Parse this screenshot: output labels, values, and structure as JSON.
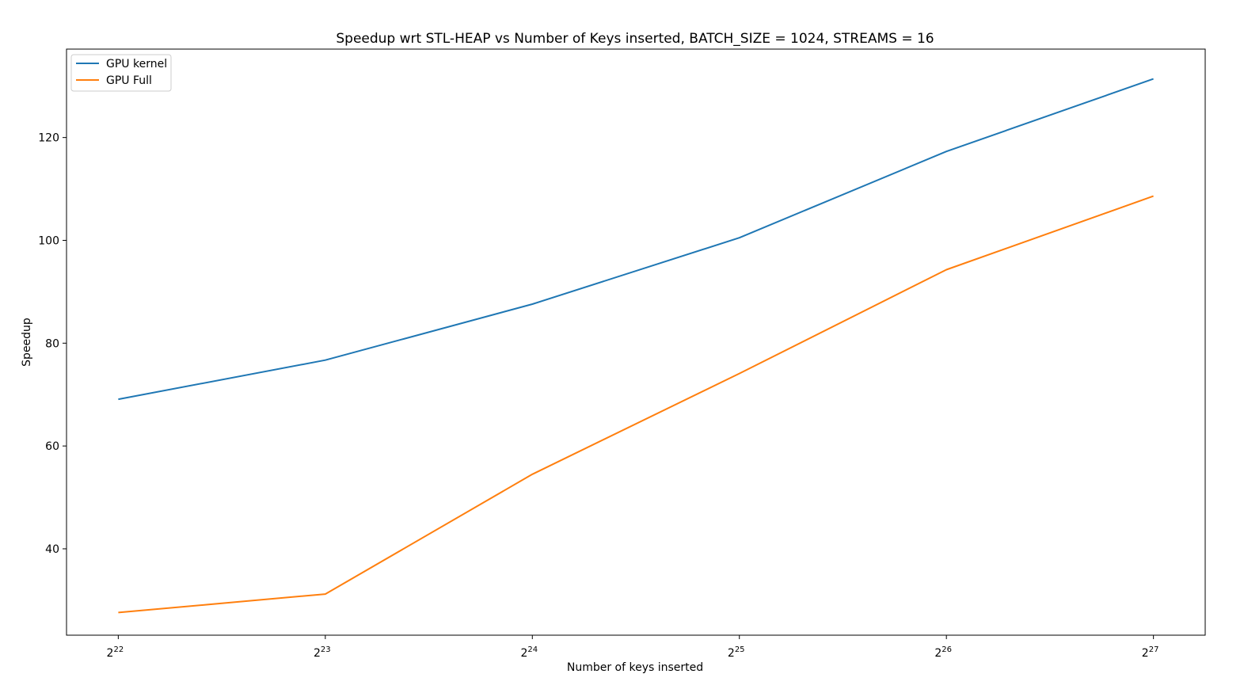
{
  "chart_data": {
    "type": "line",
    "title": "Speedup wrt STL-HEAP vs Number of Keys inserted, BATCH_SIZE = 1024, STREAMS = 16",
    "xlabel": "Number of keys inserted",
    "ylabel": "Speedup",
    "x_exponents": [
      22,
      23,
      24,
      25,
      26,
      27
    ],
    "x_tick_base": "2",
    "xlim": [
      21.75,
      27.25
    ],
    "ylim": [
      23.2,
      137.2
    ],
    "y_ticks": [
      40,
      60,
      80,
      100,
      120
    ],
    "grid": false,
    "legend_position": "top-left",
    "series": [
      {
        "name": "GPU kernel",
        "color": "#1f77b4",
        "values": [
          69.1,
          76.7,
          87.6,
          100.5,
          117.3,
          131.4
        ]
      },
      {
        "name": "GPU Full",
        "color": "#ff7f0e",
        "values": [
          27.6,
          31.2,
          54.5,
          74.1,
          94.3,
          108.6
        ]
      }
    ]
  }
}
